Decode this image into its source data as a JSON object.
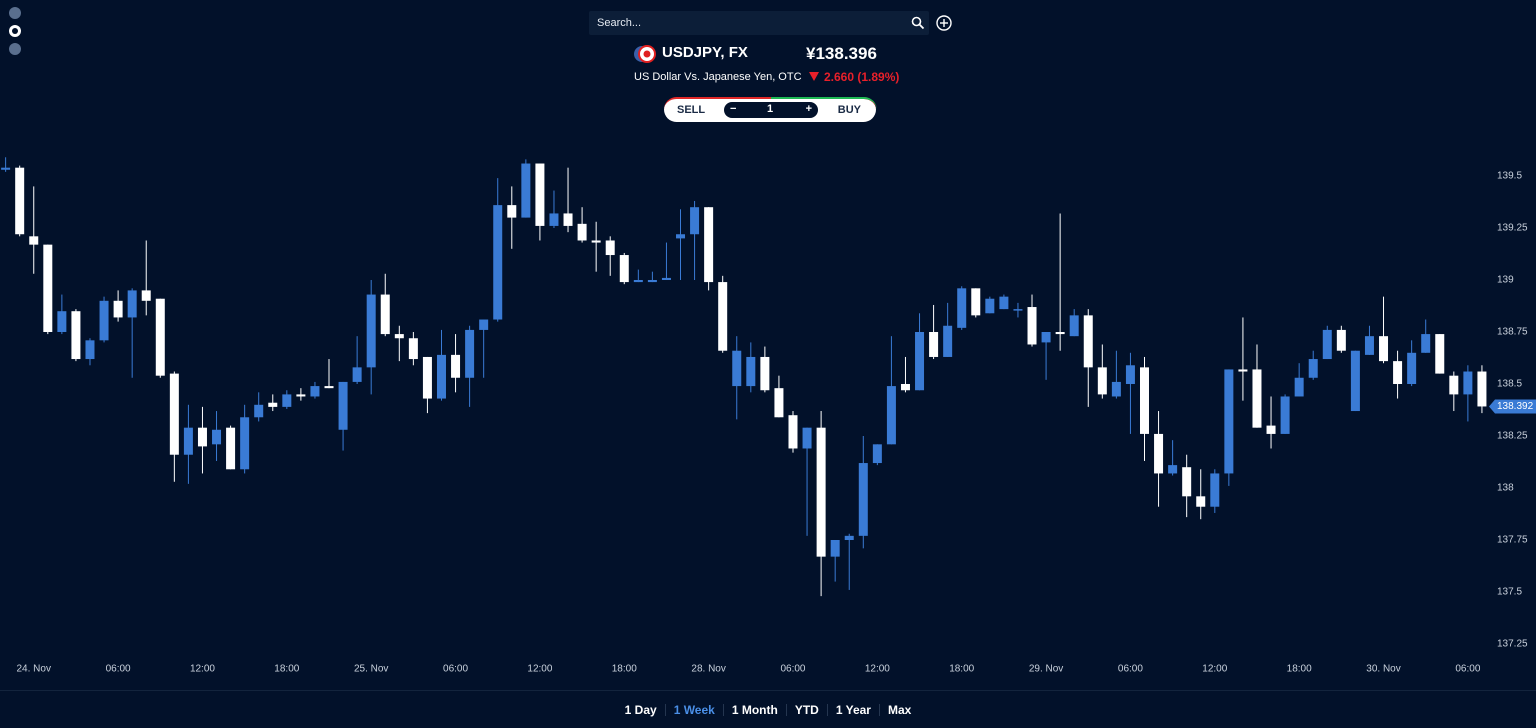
{
  "search": {
    "placeholder": "Search..."
  },
  "instrument": {
    "symbol": "USDJPY, FX",
    "price": "¥138.396",
    "description": "US Dollar Vs. Japanese Yen, OTC",
    "change": "2.660 (1.89%)"
  },
  "trade": {
    "sell": "SELL",
    "decrement": "−",
    "quantity": 1,
    "increment": "+",
    "buy": "BUY"
  },
  "ranges": {
    "items": [
      "1 Day",
      "1 Week",
      "1 Month",
      "YTD",
      "1 Year",
      "Max"
    ],
    "active": 1
  },
  "chart_data": {
    "type": "candlestick",
    "up_color": "#3a7bd5",
    "down_color": "#ffffff",
    "x": [
      -2,
      -1,
      0,
      1,
      2,
      3,
      4,
      5,
      6,
      7,
      8,
      9,
      10,
      11,
      12,
      13,
      14,
      15,
      16,
      17,
      18,
      19,
      20,
      21,
      22,
      23,
      24,
      25,
      26,
      27,
      28,
      29,
      30,
      31,
      32,
      33,
      34,
      35,
      36,
      37,
      38,
      39,
      40,
      41,
      42,
      43,
      44,
      45,
      46,
      47,
      48,
      49,
      50,
      51,
      52,
      53,
      54,
      55,
      56,
      57,
      58,
      59,
      60,
      61,
      62,
      63,
      64,
      65,
      66,
      67,
      68,
      69,
      70,
      71,
      72,
      73,
      74,
      75,
      76,
      77,
      78,
      79,
      80,
      81,
      82,
      83,
      84,
      85,
      86,
      87,
      88,
      89,
      90,
      91,
      92,
      93,
      94,
      95,
      96,
      97,
      98,
      99,
      100,
      101,
      102,
      103
    ],
    "open": [
      139.53,
      139.54,
      139.21,
      139.17,
      138.75,
      138.85,
      138.62,
      138.71,
      138.9,
      138.82,
      138.95,
      138.91,
      138.55,
      138.16,
      138.29,
      138.21,
      138.29,
      138.09,
      138.34,
      138.41,
      138.39,
      138.45,
      138.44,
      138.49,
      138.28,
      138.51,
      138.58,
      138.93,
      138.74,
      138.72,
      138.63,
      138.43,
      138.64,
      138.53,
      138.76,
      138.81,
      139.36,
      139.3,
      139.56,
      139.26,
      139.32,
      139.27,
      139.19,
      139.19,
      139.12,
      138.99,
      138.99,
      139.0,
      139.2,
      139.22,
      139.35,
      138.99,
      138.49,
      138.49,
      138.63,
      138.48,
      138.35,
      138.19,
      138.29,
      137.67,
      137.75,
      137.77,
      138.12,
      138.21,
      138.5,
      138.47,
      138.75,
      138.63,
      138.77,
      138.96,
      138.84,
      138.86,
      138.86,
      138.87,
      138.7,
      138.75,
      138.73,
      138.83,
      138.58,
      138.44,
      138.5,
      138.58,
      138.26,
      138.07,
      138.1,
      137.96,
      137.91,
      138.07,
      138.57,
      138.57,
      138.3,
      138.26,
      138.44,
      138.53,
      138.62,
      138.76,
      138.37,
      138.64,
      138.73,
      138.61,
      138.5,
      138.65,
      138.74,
      138.54,
      138.45,
      138.56
    ],
    "high": [
      139.59,
      139.55,
      139.45,
      139.17,
      138.93,
      138.86,
      138.72,
      138.92,
      138.95,
      138.96,
      139.19,
      138.91,
      138.56,
      138.4,
      138.39,
      138.37,
      138.3,
      138.4,
      138.46,
      138.45,
      138.47,
      138.48,
      138.51,
      138.62,
      138.51,
      138.73,
      139.0,
      139.03,
      138.78,
      138.75,
      138.63,
      138.76,
      138.74,
      138.78,
      138.81,
      139.49,
      139.45,
      139.58,
      139.56,
      139.43,
      139.54,
      139.35,
      139.28,
      139.21,
      139.13,
      139.05,
      139.04,
      139.18,
      139.34,
      139.38,
      139.35,
      139.02,
      138.73,
      138.7,
      138.68,
      138.54,
      138.37,
      138.29,
      138.37,
      137.75,
      137.78,
      138.25,
      138.21,
      138.73,
      138.63,
      138.84,
      138.88,
      138.89,
      138.97,
      138.96,
      138.92,
      138.93,
      138.89,
      138.93,
      138.75,
      139.32,
      138.86,
      138.86,
      138.69,
      138.66,
      138.65,
      138.63,
      138.37,
      138.23,
      138.16,
      138.09,
      138.09,
      138.57,
      138.82,
      138.69,
      138.44,
      138.45,
      138.6,
      138.66,
      138.78,
      138.78,
      138.66,
      138.78,
      138.92,
      138.66,
      138.71,
      138.81,
      138.74,
      138.56,
      138.59,
      138.59
    ],
    "low": [
      139.52,
      139.21,
      139.03,
      138.74,
      138.74,
      138.61,
      138.59,
      138.7,
      138.8,
      138.53,
      138.83,
      138.53,
      138.03,
      138.02,
      138.07,
      138.13,
      138.09,
      138.07,
      138.32,
      138.37,
      138.38,
      138.42,
      138.43,
      138.48,
      138.18,
      138.5,
      138.45,
      138.73,
      138.61,
      138.59,
      138.36,
      138.42,
      138.46,
      138.39,
      138.53,
      138.8,
      139.15,
      139.3,
      139.19,
      139.25,
      139.23,
      139.18,
      139.04,
      139.02,
      138.98,
      138.99,
      138.99,
      139.0,
      139.0,
      139.0,
      138.95,
      138.65,
      138.33,
      138.46,
      138.46,
      138.34,
      138.17,
      137.77,
      137.48,
      137.55,
      137.51,
      137.71,
      138.11,
      138.21,
      138.46,
      138.47,
      138.62,
      138.63,
      138.76,
      138.82,
      138.84,
      138.86,
      138.82,
      138.68,
      138.52,
      138.66,
      138.73,
      138.39,
      138.43,
      138.43,
      138.26,
      138.13,
      137.91,
      138.06,
      137.86,
      137.85,
      137.88,
      138.01,
      138.42,
      138.29,
      138.19,
      138.26,
      138.44,
      138.52,
      138.62,
      138.65,
      138.37,
      138.64,
      138.6,
      138.43,
      138.49,
      138.65,
      138.55,
      138.37,
      138.32,
      138.36
    ],
    "close": [
      139.54,
      139.22,
      139.17,
      138.75,
      138.85,
      138.62,
      138.71,
      138.9,
      138.82,
      138.95,
      138.9,
      138.54,
      138.16,
      138.29,
      138.2,
      138.28,
      138.09,
      138.34,
      138.4,
      138.39,
      138.45,
      138.44,
      138.49,
      138.48,
      138.51,
      138.58,
      138.93,
      138.74,
      138.72,
      138.62,
      138.43,
      138.64,
      138.53,
      138.76,
      138.81,
      139.36,
      139.3,
      139.56,
      139.26,
      139.32,
      139.26,
      139.19,
      139.18,
      139.12,
      138.99,
      139.0,
      139.0,
      139.01,
      139.22,
      139.35,
      138.99,
      138.66,
      138.66,
      138.63,
      138.47,
      138.34,
      138.19,
      138.29,
      137.67,
      137.75,
      137.77,
      138.12,
      138.21,
      138.49,
      138.47,
      138.75,
      138.63,
      138.78,
      138.96,
      138.83,
      138.91,
      138.92,
      138.86,
      138.69,
      138.75,
      138.74,
      138.83,
      138.58,
      138.45,
      138.51,
      138.59,
      138.26,
      138.07,
      138.11,
      137.96,
      137.91,
      138.07,
      138.57,
      138.56,
      138.29,
      138.26,
      138.44,
      138.53,
      138.62,
      138.76,
      138.66,
      138.66,
      138.73,
      138.61,
      138.5,
      138.65,
      138.74,
      138.55,
      138.45,
      138.56,
      138.392
    ],
    "xlim": [
      -2.4,
      104
    ],
    "xticks": [
      {
        "value": 0,
        "label": "24. Nov"
      },
      {
        "value": 6,
        "label": "06:00"
      },
      {
        "value": 12,
        "label": "12:00"
      },
      {
        "value": 18,
        "label": "18:00"
      },
      {
        "value": 24,
        "label": "25. Nov"
      },
      {
        "value": 30,
        "label": "06:00"
      },
      {
        "value": 36,
        "label": "12:00"
      },
      {
        "value": 42,
        "label": "18:00"
      },
      {
        "value": 48,
        "label": "28. Nov"
      },
      {
        "value": 54,
        "label": "06:00"
      },
      {
        "value": 60,
        "label": "12:00"
      },
      {
        "value": 66,
        "label": "18:00"
      },
      {
        "value": 72,
        "label": "29. Nov"
      },
      {
        "value": 78,
        "label": "06:00"
      },
      {
        "value": 84,
        "label": "12:00"
      },
      {
        "value": 90,
        "label": "18:00"
      },
      {
        "value": 96,
        "label": "30. Nov"
      },
      {
        "value": 102,
        "label": "06:00"
      }
    ],
    "ylim": [
      137.2,
      139.65
    ],
    "yticks": [
      137.25,
      137.5,
      137.75,
      138,
      138.25,
      138.5,
      138.75,
      139,
      139.25,
      139.5
    ]
  }
}
